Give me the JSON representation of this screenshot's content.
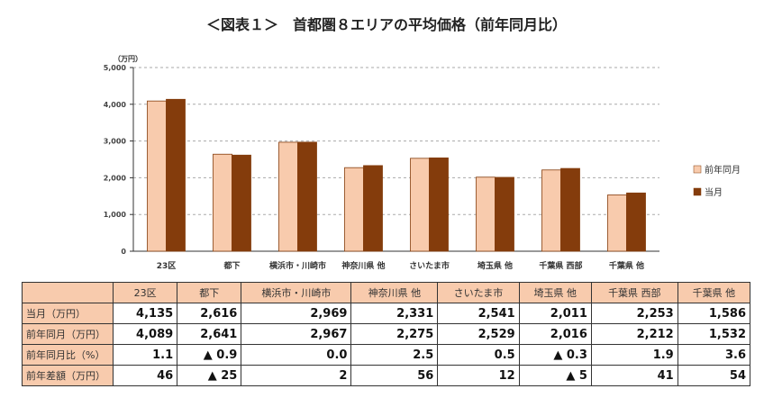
{
  "title": "＜図表１＞　首都圏８エリアの平均価格（前年同月比）",
  "chart_data": {
    "type": "bar",
    "title": "＜図表１＞　首都圏８エリアの平均価格（前年同月比）",
    "ylabel": "（万円）",
    "ylim": [
      0,
      5000
    ],
    "yticks": [
      0,
      1000,
      2000,
      3000,
      4000,
      5000
    ],
    "ytick_labels": [
      "0",
      "1,000",
      "2,000",
      "3,000",
      "4,000",
      "5,000"
    ],
    "grid": true,
    "legend_position": "right",
    "categories": [
      "23区",
      "都下",
      "横浜市・川崎市",
      "神奈川県 他",
      "さいたま市",
      "埼玉県 他",
      "千葉県 西部",
      "千葉県 他"
    ],
    "series": [
      {
        "name": "前年同月",
        "color": "#f8cbad",
        "values": [
          4089,
          2641,
          2967,
          2275,
          2529,
          2016,
          2212,
          1532
        ]
      },
      {
        "name": "当月",
        "color": "#843c0c",
        "values": [
          4135,
          2616,
          2969,
          2331,
          2541,
          2011,
          2253,
          1586
        ]
      }
    ]
  },
  "table": {
    "headers": [
      "",
      "23区",
      "都下",
      "横浜市・川崎市",
      "神奈川県 他",
      "さいたま市",
      "埼玉県 他",
      "千葉県 西部",
      "千葉県 他"
    ],
    "rows": [
      {
        "label": "当月（万円）",
        "cells": [
          "4,135",
          "2,616",
          "2,969",
          "2,331",
          "2,541",
          "2,011",
          "2,253",
          "1,586"
        ]
      },
      {
        "label": "前年同月（万円）",
        "cells": [
          "4,089",
          "2,641",
          "2,967",
          "2,275",
          "2,529",
          "2,016",
          "2,212",
          "1,532"
        ]
      },
      {
        "label": "前年同月比（%）",
        "cells": [
          "1.1",
          "▲ 0.9",
          "0.0",
          "2.5",
          "0.5",
          "▲ 0.3",
          "1.9",
          "3.6"
        ]
      },
      {
        "label": "前年差額（万円）",
        "cells": [
          "46",
          "▲ 25",
          "2",
          "56",
          "12",
          "▲ 5",
          "41",
          "54"
        ]
      }
    ]
  }
}
